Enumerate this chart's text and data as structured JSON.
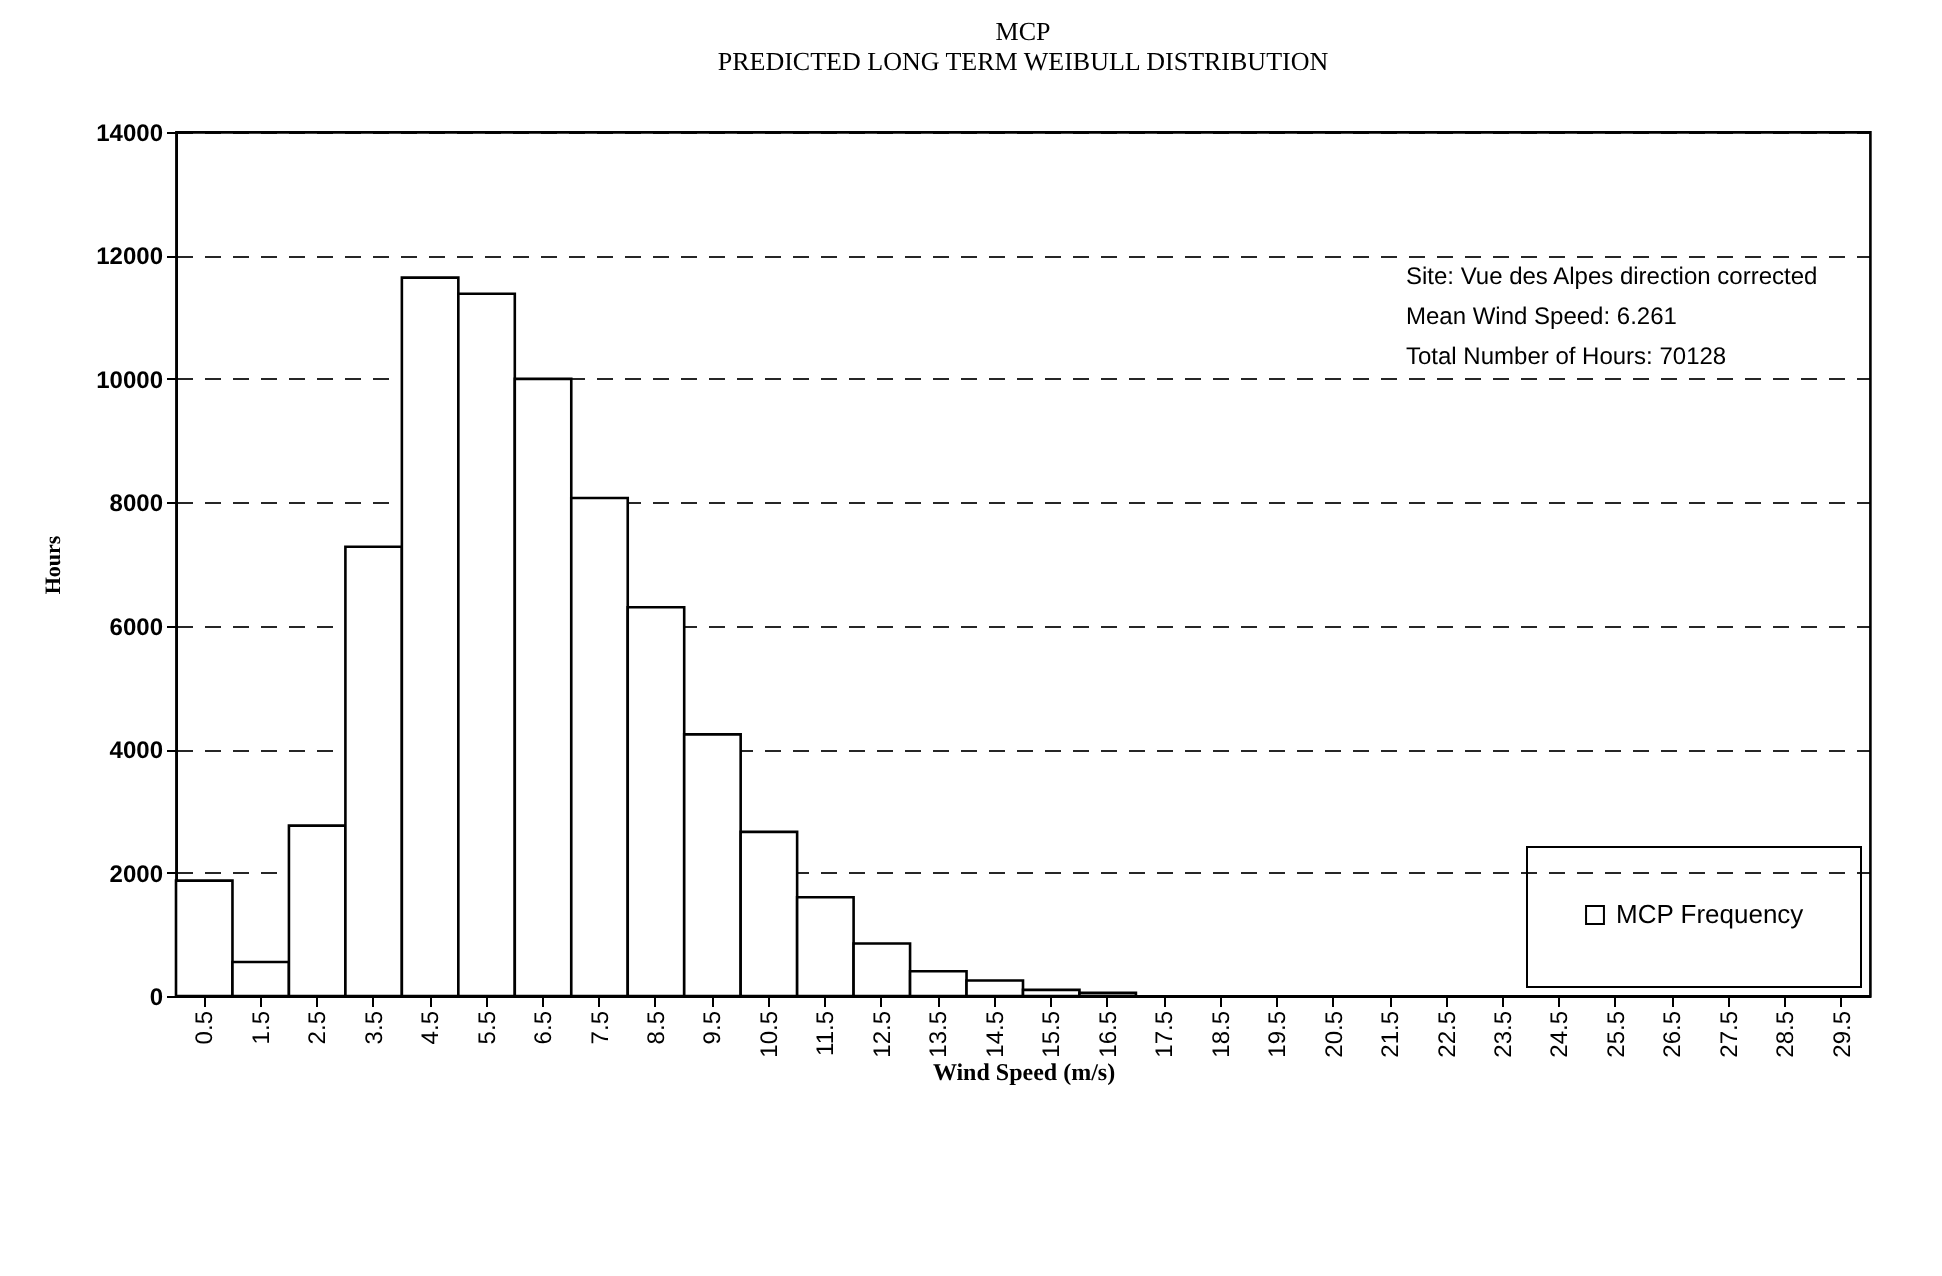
{
  "chart_data": {
    "type": "bar",
    "title": "MCP",
    "subtitle": "PREDICTED LONG TERM WEIBULL DISTRIBUTION",
    "xlabel": "Wind Speed (m/s)",
    "ylabel": "Hours",
    "categories": [
      "0.5",
      "1.5",
      "2.5",
      "3.5",
      "4.5",
      "5.5",
      "6.5",
      "7.5",
      "8.5",
      "9.5",
      "10.5",
      "11.5",
      "12.5",
      "13.5",
      "14.5",
      "15.5",
      "16.5",
      "17.5",
      "18.5",
      "19.5",
      "20.5",
      "21.5",
      "22.5",
      "23.5",
      "24.5",
      "25.5",
      "26.5",
      "27.5",
      "28.5",
      "29.5"
    ],
    "series": [
      {
        "name": "MCP Frequency",
        "color": "#ffffff",
        "values": [
          1870,
          550,
          2760,
          7280,
          11640,
          11380,
          10000,
          8070,
          6300,
          4240,
          2660,
          1600,
          850,
          400,
          250,
          100,
          50,
          null,
          null,
          null,
          null,
          null,
          null,
          null,
          null,
          null,
          null,
          null,
          null,
          null
        ]
      }
    ],
    "ylim": [
      0,
      14000
    ],
    "yticks": [
      0,
      2000,
      4000,
      6000,
      8000,
      10000,
      12000,
      14000
    ],
    "grid": "y",
    "legend": "bottom right",
    "annotations": [
      "Site:  Vue des Alpes direction corrected",
      "Mean Wind Speed:  6.261",
      "Total Number of Hours:  70128"
    ]
  }
}
